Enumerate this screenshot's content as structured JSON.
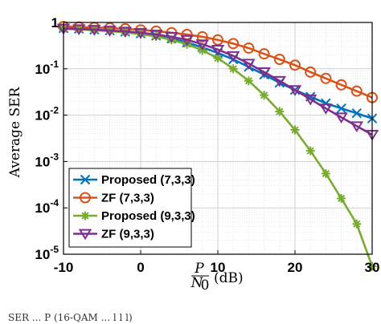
{
  "chart_data": {
    "type": "line",
    "xlabel_frac_num": "P",
    "xlabel_frac_den": "N",
    "xlabel_frac_den_sub": "0",
    "xlabel_unit": "(dB)",
    "ylabel": "Average SER",
    "x_range": [
      -10,
      30
    ],
    "y_range": [
      1e-05,
      1
    ],
    "y_scale": "log",
    "grid": true,
    "legend_position": "bottom-left",
    "x_ticks": [
      -10,
      0,
      10,
      20,
      30
    ],
    "x_tick_labels": [
      "-10",
      "0",
      "10",
      "20",
      "30"
    ],
    "y_ticks": [
      1e-05,
      0.0001,
      0.001,
      0.01,
      0.1,
      1
    ],
    "y_tick_base": "10",
    "y_tick_exponents": [
      "-5",
      "-4",
      "-3",
      "-2",
      "-1",
      ""
    ],
    "y_tick_mantissa_last": "1",
    "x": [
      -10,
      -8,
      -6,
      -4,
      -2,
      0,
      2,
      4,
      6,
      8,
      10,
      12,
      14,
      16,
      18,
      20,
      22,
      24,
      26,
      28,
      30
    ],
    "series": [
      {
        "name": "Proposed (7,3,3)",
        "color": "#0072BD",
        "marker": "x",
        "values": [
          0.75,
          0.73,
          0.7,
          0.67,
          0.63,
          0.58,
          0.52,
          0.45,
          0.37,
          0.29,
          0.22,
          0.16,
          0.11,
          0.075,
          0.05,
          0.035,
          0.025,
          0.018,
          0.014,
          0.011,
          0.0085
        ]
      },
      {
        "name": "ZF (7,3,3)",
        "color": "#D95319",
        "marker": "o",
        "values": [
          0.82,
          0.8,
          0.78,
          0.76,
          0.73,
          0.69,
          0.65,
          0.6,
          0.55,
          0.49,
          0.42,
          0.35,
          0.28,
          0.21,
          0.16,
          0.12,
          0.085,
          0.062,
          0.045,
          0.033,
          0.024
        ]
      },
      {
        "name": "Proposed (9,3,3)",
        "color": "#77AC30",
        "marker": "*",
        "values": [
          0.73,
          0.71,
          0.68,
          0.65,
          0.61,
          0.56,
          0.5,
          0.42,
          0.34,
          0.25,
          0.17,
          0.1,
          0.055,
          0.027,
          0.012,
          0.0048,
          0.0017,
          0.00055,
          0.00016,
          4.5e-05,
          5.5e-06
        ]
      },
      {
        "name": "ZF (9,3,3)",
        "color": "#7E2F8E",
        "marker": "v",
        "values": [
          0.74,
          0.72,
          0.7,
          0.67,
          0.64,
          0.6,
          0.55,
          0.49,
          0.42,
          0.34,
          0.26,
          0.19,
          0.13,
          0.085,
          0.055,
          0.035,
          0.022,
          0.014,
          0.009,
          0.0058,
          0.0038
        ]
      }
    ]
  },
  "caption_text": "SER ... P (16-QAM ... l l l)"
}
